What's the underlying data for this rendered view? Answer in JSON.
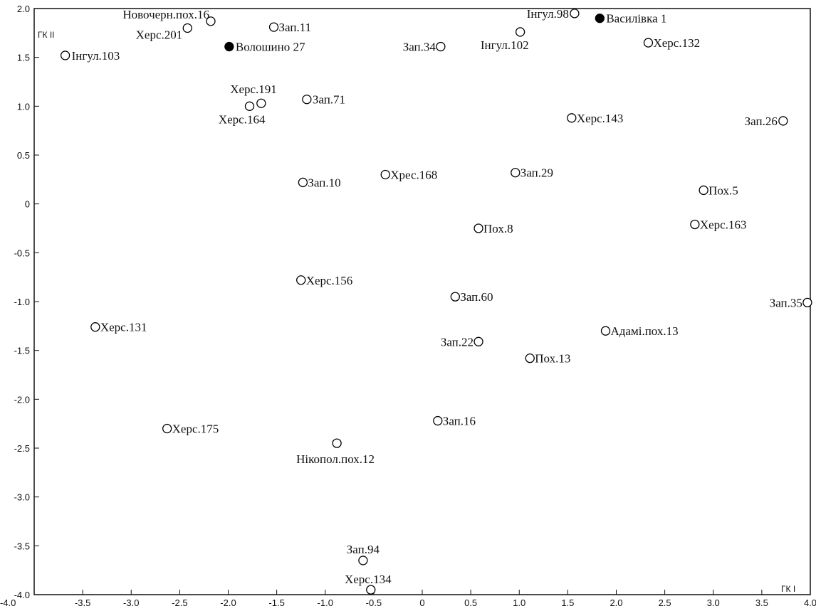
{
  "chart_data": {
    "type": "scatter",
    "title": "",
    "xlabel": "ГК I",
    "ylabel": "ГК II",
    "xlim": [
      -4.0,
      4.0
    ],
    "ylim": [
      -4.0,
      2.0
    ],
    "x_ticks": [
      "-4.0",
      "-3.5",
      "-3.0",
      "-2.5",
      "-2.0",
      "-1.5",
      "-1.0",
      "-0.5",
      "0",
      "0.5",
      "1.0",
      "1.5",
      "2.0",
      "2.5",
      "3.0",
      "3.5",
      "4.0"
    ],
    "y_ticks": [
      "2.0",
      "1.5",
      "1.0",
      "0.5",
      "0",
      "-0.5",
      "-1.0",
      "-1.5",
      "-2.0",
      "-2.5",
      "-3.0",
      "-3.5",
      "-4.0"
    ],
    "grid": false,
    "legend": "none",
    "marker_styles": {
      "open": "hollow circle",
      "filled": "filled circle"
    },
    "points": [
      {
        "label": "Новочерн.пох.16",
        "x": -2.18,
        "y": 1.87,
        "marker": "open"
      },
      {
        "label": "Херс.201",
        "x": -2.42,
        "y": 1.8,
        "marker": "open"
      },
      {
        "label": "Інгул.103",
        "x": -3.68,
        "y": 1.52,
        "marker": "open"
      },
      {
        "label": "Волошино 27",
        "x": -1.99,
        "y": 1.61,
        "marker": "filled"
      },
      {
        "label": "Зап.11",
        "x": -1.53,
        "y": 1.81,
        "marker": "open"
      },
      {
        "label": "Херс.191",
        "x": -1.66,
        "y": 1.03,
        "marker": "open"
      },
      {
        "label": "Херс.164",
        "x": -1.78,
        "y": 1.0,
        "marker": "open"
      },
      {
        "label": "Зап.71",
        "x": -1.19,
        "y": 1.07,
        "marker": "open"
      },
      {
        "label": "Зап.10",
        "x": -1.23,
        "y": 0.22,
        "marker": "open"
      },
      {
        "label": "Хрес.168",
        "x": -0.38,
        "y": 0.3,
        "marker": "open"
      },
      {
        "label": "Зап.34",
        "x": 0.19,
        "y": 1.61,
        "marker": "open"
      },
      {
        "label": "Інгул.98",
        "x": 1.57,
        "y": 1.95,
        "marker": "open"
      },
      {
        "label": "Інгул.102",
        "x": 1.01,
        "y": 1.76,
        "marker": "open"
      },
      {
        "label": "Василівка 1",
        "x": 1.83,
        "y": 1.9,
        "marker": "filled"
      },
      {
        "label": "Херс.132",
        "x": 2.33,
        "y": 1.65,
        "marker": "open"
      },
      {
        "label": "Херс.143",
        "x": 1.54,
        "y": 0.88,
        "marker": "open"
      },
      {
        "label": "Зап.26",
        "x": 3.72,
        "y": 0.85,
        "marker": "open"
      },
      {
        "label": "Зап.29",
        "x": 0.96,
        "y": 0.32,
        "marker": "open"
      },
      {
        "label": "Пох.5",
        "x": 2.9,
        "y": 0.14,
        "marker": "open"
      },
      {
        "label": "Пох.8",
        "x": 0.58,
        "y": -0.25,
        "marker": "open"
      },
      {
        "label": "Херс.163",
        "x": 2.81,
        "y": -0.21,
        "marker": "open"
      },
      {
        "label": "Херс.156",
        "x": -1.25,
        "y": -0.78,
        "marker": "open"
      },
      {
        "label": "Зап.60",
        "x": 0.34,
        "y": -0.95,
        "marker": "open"
      },
      {
        "label": "Зап.35",
        "x": 3.97,
        "y": -1.01,
        "marker": "open"
      },
      {
        "label": "Херс.131",
        "x": -3.37,
        "y": -1.26,
        "marker": "open"
      },
      {
        "label": "Адамі.пох.13",
        "x": 1.89,
        "y": -1.3,
        "marker": "open"
      },
      {
        "label": "Зап.22",
        "x": 0.58,
        "y": -1.41,
        "marker": "open"
      },
      {
        "label": "Пох.13",
        "x": 1.11,
        "y": -1.58,
        "marker": "open"
      },
      {
        "label": "Зап.16",
        "x": 0.16,
        "y": -2.22,
        "marker": "open"
      },
      {
        "label": "Херс.175",
        "x": -2.63,
        "y": -2.3,
        "marker": "open"
      },
      {
        "label": "Нікопол.пох.12",
        "x": -0.88,
        "y": -2.45,
        "marker": "open"
      },
      {
        "label": "Зап.94",
        "x": -0.61,
        "y": -3.65,
        "marker": "open"
      },
      {
        "label": "Херс.134",
        "x": -0.53,
        "y": -3.95,
        "marker": "open"
      }
    ]
  }
}
